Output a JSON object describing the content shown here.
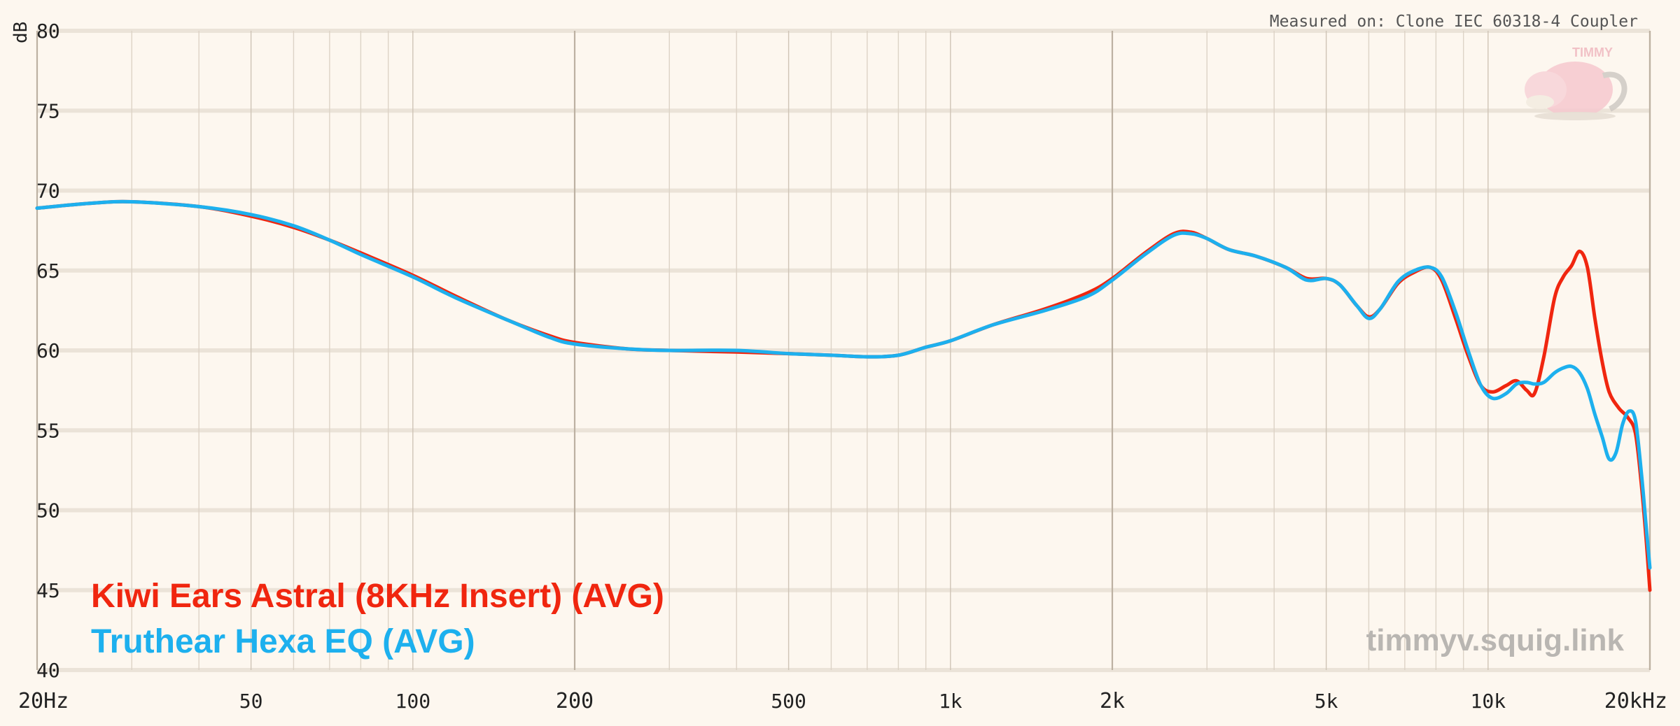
{
  "measured_on": "Measured on: Clone IEC 60318-4 Coupler",
  "watermark": "timmyv.squig.link",
  "mascot_badge": "TIMMY",
  "colors": {
    "background": "#fdf7ef",
    "series_red": "#f0260f",
    "series_blue": "#1db0ee",
    "grid_major": "#c9bfb2",
    "grid_minor": "#ddd3c6"
  },
  "chart_data": {
    "type": "line",
    "title": "",
    "xlabel": "",
    "ylabel": "dB",
    "x_scale": "log",
    "xlim": [
      20,
      20000
    ],
    "ylim": [
      40,
      80
    ],
    "grid": true,
    "legend_position": "bottom-left",
    "x_ticks": [
      {
        "value": 20,
        "label": "20Hz"
      },
      {
        "value": 50,
        "label": "50"
      },
      {
        "value": 100,
        "label": "100"
      },
      {
        "value": 200,
        "label": "200"
      },
      {
        "value": 500,
        "label": "500"
      },
      {
        "value": 1000,
        "label": "1k"
      },
      {
        "value": 2000,
        "label": "2k"
      },
      {
        "value": 5000,
        "label": "5k"
      },
      {
        "value": 10000,
        "label": "10k"
      },
      {
        "value": 20000,
        "label": "20kHz"
      }
    ],
    "y_ticks": [
      {
        "value": 40,
        "label": "40"
      },
      {
        "value": 45,
        "label": "45"
      },
      {
        "value": 50,
        "label": "50"
      },
      {
        "value": 55,
        "label": "55"
      },
      {
        "value": 60,
        "label": "60"
      },
      {
        "value": 65,
        "label": "65"
      },
      {
        "value": 70,
        "label": "70"
      },
      {
        "value": 75,
        "label": "75"
      },
      {
        "value": 80,
        "label": "80"
      }
    ],
    "series": [
      {
        "name": "Kiwi Ears Astral (8KHz Insert) (AVG)",
        "color": "#f0260f",
        "points": [
          [
            20,
            68.9
          ],
          [
            25,
            69.2
          ],
          [
            30,
            69.3
          ],
          [
            40,
            69.0
          ],
          [
            50,
            68.4
          ],
          [
            60,
            67.7
          ],
          [
            70,
            66.9
          ],
          [
            80,
            66.1
          ],
          [
            100,
            64.7
          ],
          [
            120,
            63.4
          ],
          [
            150,
            61.9
          ],
          [
            180,
            60.9
          ],
          [
            200,
            60.5
          ],
          [
            250,
            60.1
          ],
          [
            300,
            60.0
          ],
          [
            400,
            59.9
          ],
          [
            500,
            59.8
          ],
          [
            600,
            59.7
          ],
          [
            700,
            59.6
          ],
          [
            800,
            59.7
          ],
          [
            900,
            60.2
          ],
          [
            1000,
            60.6
          ],
          [
            1200,
            61.6
          ],
          [
            1500,
            62.6
          ],
          [
            1800,
            63.6
          ],
          [
            2000,
            64.5
          ],
          [
            2300,
            66.1
          ],
          [
            2600,
            67.3
          ],
          [
            2800,
            67.4
          ],
          [
            3000,
            67.0
          ],
          [
            3300,
            66.3
          ],
          [
            3700,
            65.9
          ],
          [
            4200,
            65.2
          ],
          [
            4600,
            64.5
          ],
          [
            5000,
            64.5
          ],
          [
            5300,
            64.1
          ],
          [
            5700,
            62.8
          ],
          [
            6000,
            62.1
          ],
          [
            6300,
            62.6
          ],
          [
            6800,
            64.2
          ],
          [
            7300,
            64.9
          ],
          [
            7800,
            65.2
          ],
          [
            8200,
            64.4
          ],
          [
            8700,
            62.0
          ],
          [
            9200,
            59.6
          ],
          [
            9700,
            57.8
          ],
          [
            10200,
            57.4
          ],
          [
            10800,
            57.8
          ],
          [
            11300,
            58.1
          ],
          [
            11800,
            57.5
          ],
          [
            12200,
            57.3
          ],
          [
            12700,
            59.6
          ],
          [
            13300,
            63.3
          ],
          [
            13800,
            64.6
          ],
          [
            14300,
            65.3
          ],
          [
            14800,
            66.2
          ],
          [
            15300,
            65.2
          ],
          [
            15800,
            62.0
          ],
          [
            16300,
            59.3
          ],
          [
            16800,
            57.4
          ],
          [
            17500,
            56.4
          ],
          [
            18200,
            55.8
          ],
          [
            18800,
            54.8
          ],
          [
            19300,
            51.5
          ],
          [
            19700,
            48.0
          ],
          [
            20000,
            45.0
          ]
        ]
      },
      {
        "name": "Truthear Hexa EQ (AVG)",
        "color": "#1db0ee",
        "points": [
          [
            20,
            68.9
          ],
          [
            25,
            69.2
          ],
          [
            30,
            69.3
          ],
          [
            40,
            69.0
          ],
          [
            50,
            68.5
          ],
          [
            60,
            67.8
          ],
          [
            70,
            66.9
          ],
          [
            80,
            66.0
          ],
          [
            100,
            64.6
          ],
          [
            120,
            63.3
          ],
          [
            150,
            61.9
          ],
          [
            180,
            60.8
          ],
          [
            200,
            60.4
          ],
          [
            250,
            60.1
          ],
          [
            300,
            60.0
          ],
          [
            400,
            60.0
          ],
          [
            500,
            59.8
          ],
          [
            600,
            59.7
          ],
          [
            700,
            59.6
          ],
          [
            800,
            59.7
          ],
          [
            900,
            60.2
          ],
          [
            1000,
            60.6
          ],
          [
            1200,
            61.6
          ],
          [
            1500,
            62.5
          ],
          [
            1800,
            63.4
          ],
          [
            2000,
            64.4
          ],
          [
            2300,
            66.0
          ],
          [
            2600,
            67.2
          ],
          [
            2800,
            67.3
          ],
          [
            3000,
            67.0
          ],
          [
            3300,
            66.3
          ],
          [
            3700,
            65.9
          ],
          [
            4200,
            65.2
          ],
          [
            4600,
            64.4
          ],
          [
            5000,
            64.5
          ],
          [
            5300,
            64.1
          ],
          [
            5700,
            62.8
          ],
          [
            6000,
            62.0
          ],
          [
            6300,
            62.6
          ],
          [
            6800,
            64.3
          ],
          [
            7300,
            65.0
          ],
          [
            7800,
            65.2
          ],
          [
            8200,
            64.6
          ],
          [
            8700,
            62.4
          ],
          [
            9200,
            59.9
          ],
          [
            9700,
            57.8
          ],
          [
            10200,
            57.0
          ],
          [
            10800,
            57.3
          ],
          [
            11300,
            57.9
          ],
          [
            11800,
            58.0
          ],
          [
            12200,
            57.9
          ],
          [
            12700,
            58.0
          ],
          [
            13300,
            58.6
          ],
          [
            13800,
            58.9
          ],
          [
            14300,
            59.0
          ],
          [
            14800,
            58.6
          ],
          [
            15300,
            57.6
          ],
          [
            15800,
            56.0
          ],
          [
            16300,
            54.6
          ],
          [
            16800,
            53.2
          ],
          [
            17300,
            53.6
          ],
          [
            17800,
            55.4
          ],
          [
            18300,
            56.2
          ],
          [
            18800,
            55.6
          ],
          [
            19300,
            52.2
          ],
          [
            19700,
            48.8
          ],
          [
            20000,
            46.4
          ]
        ]
      }
    ]
  }
}
